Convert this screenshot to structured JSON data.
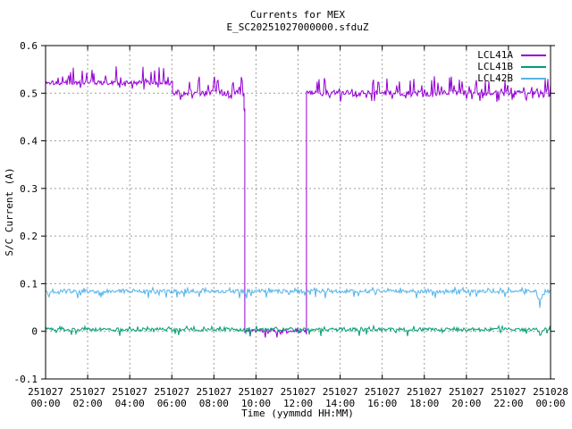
{
  "chart_data": {
    "type": "line",
    "title": "Currents for MEX",
    "subtitle": "E_SC20251027000000.sfduZ",
    "xlabel": "Time (yymmdd HH:MM)",
    "ylabel": "S/C Current (A)",
    "ylim": [
      -0.1,
      0.6
    ],
    "xlim_hours": [
      0,
      24
    ],
    "grid": "on",
    "grid_color": "#9e9e9e",
    "border_color": "#000000",
    "legend_position": "top-right-inside",
    "y_ticks": [
      {
        "value": -0.1,
        "label": "-0.1"
      },
      {
        "value": 0,
        "label": "0"
      },
      {
        "value": 0.1,
        "label": "0.1"
      },
      {
        "value": 0.2,
        "label": "0.2"
      },
      {
        "value": 0.3,
        "label": "0.3"
      },
      {
        "value": 0.4,
        "label": "0.4"
      },
      {
        "value": 0.5,
        "label": "0.5"
      },
      {
        "value": 0.6,
        "label": "0.6"
      }
    ],
    "x_ticks": [
      {
        "hour": 0,
        "date": "251027",
        "time": "00:00"
      },
      {
        "hour": 2,
        "date": "251027",
        "time": "02:00"
      },
      {
        "hour": 4,
        "date": "251027",
        "time": "04:00"
      },
      {
        "hour": 6,
        "date": "251027",
        "time": "06:00"
      },
      {
        "hour": 8,
        "date": "251027",
        "time": "08:00"
      },
      {
        "hour": 10,
        "date": "251027",
        "time": "10:00"
      },
      {
        "hour": 12,
        "date": "251027",
        "time": "12:00"
      },
      {
        "hour": 14,
        "date": "251027",
        "time": "14:00"
      },
      {
        "hour": 16,
        "date": "251027",
        "time": "16:00"
      },
      {
        "hour": 18,
        "date": "251027",
        "time": "18:00"
      },
      {
        "hour": 20,
        "date": "251027",
        "time": "20:00"
      },
      {
        "hour": 22,
        "date": "251027",
        "time": "22:00"
      },
      {
        "hour": 24,
        "date": "251028",
        "time": "00:00"
      }
    ],
    "series": [
      {
        "name": "LCL41A",
        "color": "#9400d3",
        "description": "steady 0.522 A until 06:02, 0.50 A until dropout 09:28, off (~0 A) until 12:24, then 0.50 A",
        "segments": [
          {
            "t0": 0,
            "t1": 6.03,
            "level": 0.522,
            "band": 0.005,
            "p_up": 0.18,
            "spike_up": 0.032,
            "p_down": 0.05,
            "spike_down": 0.01
          },
          {
            "t0": 6.03,
            "t1": 9.43,
            "level": 0.5,
            "band": 0.006,
            "p_up": 0.16,
            "spike_up": 0.03,
            "p_down": 0.08,
            "spike_down": 0.012
          },
          {
            "t0": 9.43,
            "t1": 9.47,
            "level": 0.465,
            "band": 0.004,
            "p_up": 0.05,
            "spike_up": 0.008,
            "p_down": 0.05,
            "spike_down": 0.008
          },
          {
            "t0": 9.47,
            "t1": 12.4,
            "level": 0.001,
            "band": 0.003,
            "p_up": 0.05,
            "spike_up": 0.004,
            "p_down": 0.14,
            "spike_down": 0.013
          },
          {
            "t0": 12.4,
            "t1": 24,
            "level": 0.5,
            "band": 0.006,
            "p_up": 0.16,
            "spike_up": 0.03,
            "p_down": 0.08,
            "spike_down": 0.012
          }
        ]
      },
      {
        "name": "LCL41B",
        "color": "#009e73",
        "description": "constant ~0.005 A with occasional negative ticks",
        "segments": [
          {
            "t0": 0,
            "t1": 24,
            "level": 0.004,
            "band": 0.0035,
            "p_up": 0.05,
            "spike_up": 0.004,
            "p_down": 0.06,
            "spike_down": 0.011,
            "end_dip": {
              "t0": 23.35,
              "t1": 23.7,
              "value": -0.008
            }
          }
        ]
      },
      {
        "name": "LCL42B",
        "color": "#56b4e9",
        "description": "constant ~0.085 A with occasional downward notches",
        "segments": [
          {
            "t0": 0,
            "t1": 24,
            "level": 0.084,
            "band": 0.004,
            "p_up": 0.06,
            "spike_up": 0.004,
            "p_down": 0.08,
            "spike_down": 0.011,
            "end_dip": {
              "t0": 23.25,
              "t1": 23.75,
              "value": 0.062
            }
          }
        ]
      }
    ]
  }
}
